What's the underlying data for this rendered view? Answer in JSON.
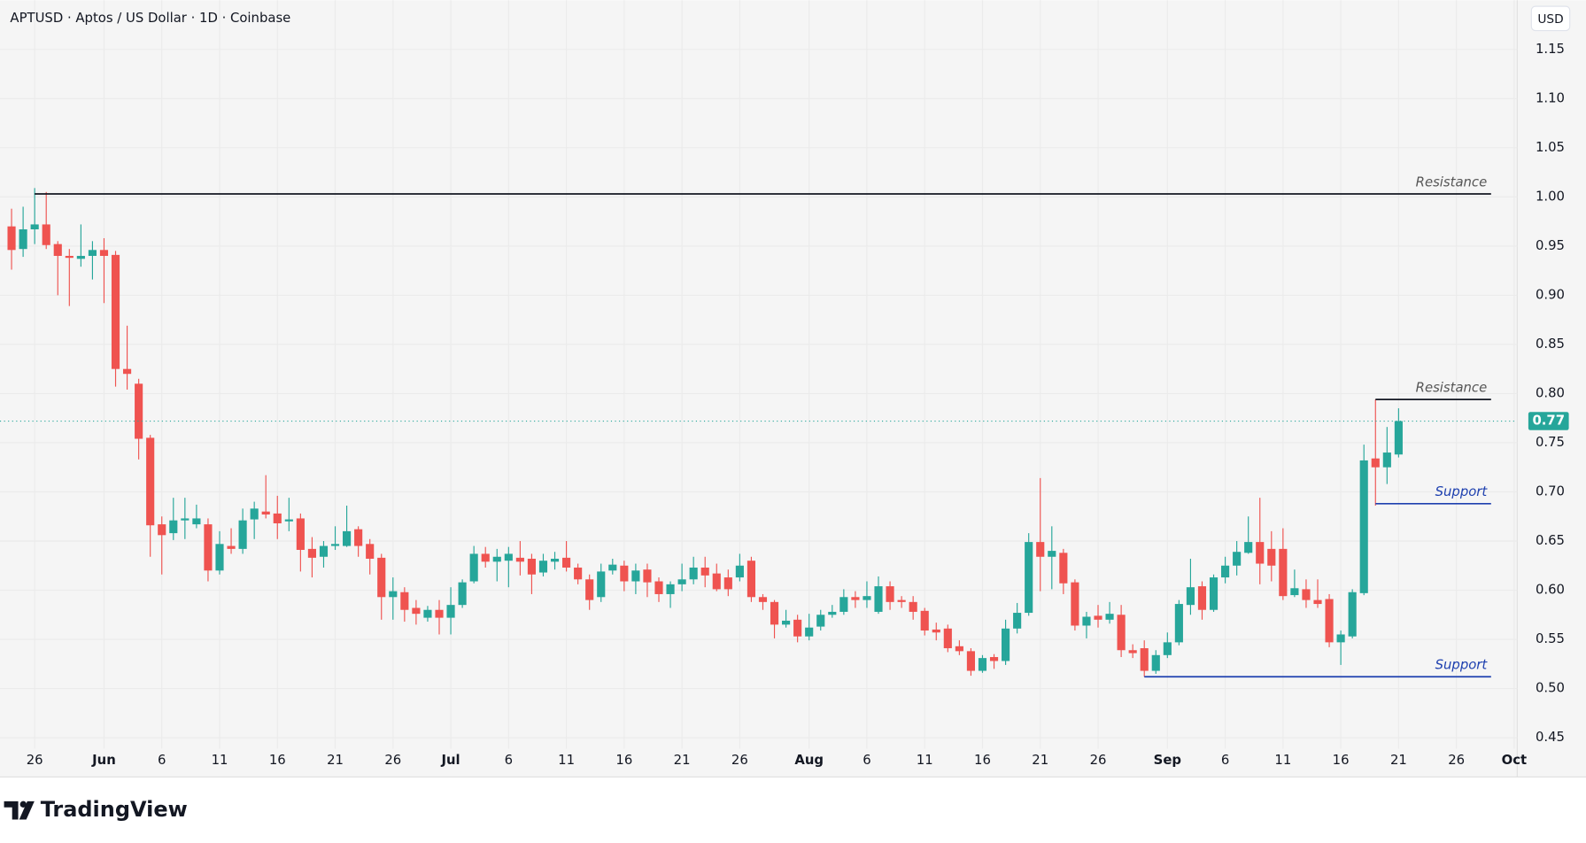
{
  "chart_data": {
    "type": "candlestick",
    "title": "APTUSD · Aptos / US Dollar · 1D · Coinbase",
    "x": [
      "05-24",
      "05-25",
      "05-26",
      "05-27",
      "05-28",
      "05-29",
      "05-30",
      "05-31",
      "06-01",
      "06-02",
      "06-03",
      "06-04",
      "06-05",
      "06-06",
      "06-07",
      "06-08",
      "06-09",
      "06-10",
      "06-11",
      "06-12",
      "06-13",
      "06-14",
      "06-15",
      "06-16",
      "06-17",
      "06-18",
      "06-19",
      "06-20",
      "06-21",
      "06-22",
      "06-23",
      "06-24",
      "06-25",
      "06-26",
      "06-27",
      "06-28",
      "06-29",
      "06-30",
      "07-01",
      "07-02",
      "07-03",
      "07-04",
      "07-05",
      "07-06",
      "07-07",
      "07-08",
      "07-09",
      "07-10",
      "07-11",
      "07-12",
      "07-13",
      "07-14",
      "07-15",
      "07-16",
      "07-17",
      "07-18",
      "07-19",
      "07-20",
      "07-21",
      "07-22",
      "07-23",
      "07-24",
      "07-25",
      "07-26",
      "07-27",
      "07-28",
      "07-29",
      "07-30",
      "07-31",
      "08-01",
      "08-02",
      "08-03",
      "08-04",
      "08-05",
      "08-06",
      "08-07",
      "08-08",
      "08-09",
      "08-10",
      "08-11",
      "08-12",
      "08-13",
      "08-14",
      "08-15",
      "08-16",
      "08-17",
      "08-18",
      "08-19",
      "08-20",
      "08-21",
      "08-22",
      "08-23",
      "08-24",
      "08-25",
      "08-26",
      "08-27",
      "08-28",
      "08-29",
      "08-30",
      "08-31",
      "09-01",
      "09-02",
      "09-03",
      "09-04",
      "09-05",
      "09-06",
      "09-07",
      "09-08",
      "09-09",
      "09-10",
      "09-11",
      "09-12",
      "09-13",
      "09-14",
      "09-15",
      "09-16",
      "09-17",
      "09-18",
      "09-19",
      "09-20",
      "09-21"
    ],
    "open": [
      0.97,
      0.947,
      0.967,
      0.972,
      0.952,
      0.94,
      0.937,
      0.94,
      0.946,
      0.941,
      0.825,
      0.81,
      0.755,
      0.667,
      0.658,
      0.671,
      0.667,
      0.667,
      0.62,
      0.645,
      0.642,
      0.672,
      0.68,
      0.678,
      0.67,
      0.673,
      0.642,
      0.634,
      0.645,
      0.645,
      0.662,
      0.647,
      0.633,
      0.593,
      0.598,
      0.582,
      0.572,
      0.58,
      0.572,
      0.585,
      0.609,
      0.637,
      0.629,
      0.63,
      0.633,
      0.632,
      0.618,
      0.629,
      0.633,
      0.623,
      0.611,
      0.593,
      0.62,
      0.625,
      0.609,
      0.621,
      0.609,
      0.596,
      0.606,
      0.611,
      0.623,
      0.617,
      0.613,
      0.613,
      0.63,
      0.593,
      0.588,
      0.565,
      0.57,
      0.553,
      0.563,
      0.575,
      0.578,
      0.593,
      0.59,
      0.578,
      0.604,
      0.59,
      0.588,
      0.579,
      0.56,
      0.561,
      0.543,
      0.538,
      0.518,
      0.532,
      0.528,
      0.561,
      0.577,
      0.649,
      0.634,
      0.638,
      0.608,
      0.564,
      0.574,
      0.57,
      0.575,
      0.539,
      0.541,
      0.518,
      0.534,
      0.547,
      0.585,
      0.604,
      0.58,
      0.613,
      0.625,
      0.638,
      0.649,
      0.642,
      0.642,
      0.595,
      0.601,
      0.59,
      0.591,
      0.547,
      0.553,
      0.597,
      0.734,
      0.725,
      0.738
    ],
    "high": [
      0.988,
      0.99,
      1.009,
      1.005,
      0.955,
      0.947,
      0.972,
      0.955,
      0.958,
      0.945,
      0.869,
      0.815,
      0.758,
      0.675,
      0.694,
      0.694,
      0.687,
      0.673,
      0.66,
      0.663,
      0.683,
      0.69,
      0.717,
      0.696,
      0.694,
      0.678,
      0.654,
      0.65,
      0.665,
      0.686,
      0.665,
      0.652,
      0.637,
      0.613,
      0.603,
      0.59,
      0.584,
      0.59,
      0.603,
      0.611,
      0.645,
      0.644,
      0.642,
      0.644,
      0.65,
      0.637,
      0.637,
      0.639,
      0.65,
      0.627,
      0.616,
      0.627,
      0.632,
      0.63,
      0.627,
      0.627,
      0.613,
      0.609,
      0.627,
      0.634,
      0.634,
      0.627,
      0.621,
      0.637,
      0.634,
      0.596,
      0.59,
      0.58,
      0.575,
      0.576,
      0.58,
      0.585,
      0.601,
      0.599,
      0.609,
      0.614,
      0.609,
      0.594,
      0.594,
      0.582,
      0.567,
      0.565,
      0.549,
      0.541,
      0.534,
      0.535,
      0.57,
      0.587,
      0.658,
      0.714,
      0.665,
      0.642,
      0.611,
      0.578,
      0.585,
      0.588,
      0.585,
      0.545,
      0.549,
      0.539,
      0.557,
      0.59,
      0.632,
      0.609,
      0.616,
      0.634,
      0.65,
      0.675,
      0.694,
      0.66,
      0.663,
      0.621,
      0.611,
      0.611,
      0.596,
      0.559,
      0.601,
      0.748,
      0.794,
      0.766,
      0.785
    ],
    "low": [
      0.926,
      0.939,
      0.952,
      0.947,
      0.9,
      0.889,
      0.929,
      0.916,
      0.892,
      0.807,
      0.804,
      0.733,
      0.634,
      0.616,
      0.651,
      0.652,
      0.663,
      0.609,
      0.616,
      0.637,
      0.637,
      0.652,
      0.673,
      0.652,
      0.66,
      0.619,
      0.613,
      0.623,
      0.641,
      0.644,
      0.634,
      0.616,
      0.57,
      0.57,
      0.568,
      0.565,
      0.568,
      0.555,
      0.555,
      0.582,
      0.607,
      0.623,
      0.609,
      0.603,
      0.615,
      0.596,
      0.614,
      0.621,
      0.619,
      0.606,
      0.58,
      0.588,
      0.616,
      0.599,
      0.596,
      0.593,
      0.588,
      0.582,
      0.599,
      0.606,
      0.603,
      0.599,
      0.594,
      0.609,
      0.588,
      0.58,
      0.551,
      0.562,
      0.547,
      0.549,
      0.559,
      0.572,
      0.575,
      0.582,
      0.582,
      0.576,
      0.58,
      0.582,
      0.57,
      0.554,
      0.549,
      0.537,
      0.534,
      0.513,
      0.516,
      0.52,
      0.524,
      0.556,
      0.574,
      0.599,
      0.601,
      0.596,
      0.559,
      0.551,
      0.562,
      0.566,
      0.532,
      0.531,
      0.512,
      0.515,
      0.531,
      0.544,
      0.575,
      0.57,
      0.578,
      0.607,
      0.615,
      0.637,
      0.606,
      0.609,
      0.59,
      0.593,
      0.582,
      0.582,
      0.542,
      0.524,
      0.551,
      0.595,
      0.686,
      0.708,
      0.735
    ],
    "close": [
      0.946,
      0.967,
      0.972,
      0.951,
      0.94,
      0.938,
      0.94,
      0.946,
      0.94,
      0.825,
      0.82,
      0.754,
      0.666,
      0.656,
      0.671,
      0.673,
      0.673,
      0.62,
      0.647,
      0.642,
      0.671,
      0.683,
      0.677,
      0.668,
      0.672,
      0.641,
      0.633,
      0.645,
      0.647,
      0.66,
      0.645,
      0.632,
      0.593,
      0.599,
      0.58,
      0.576,
      0.58,
      0.572,
      0.585,
      0.608,
      0.637,
      0.629,
      0.634,
      0.637,
      0.629,
      0.616,
      0.63,
      0.632,
      0.623,
      0.611,
      0.59,
      0.619,
      0.626,
      0.609,
      0.62,
      0.608,
      0.596,
      0.606,
      0.611,
      0.623,
      0.615,
      0.601,
      0.601,
      0.625,
      0.593,
      0.588,
      0.565,
      0.569,
      0.553,
      0.562,
      0.575,
      0.578,
      0.593,
      0.59,
      0.594,
      0.604,
      0.588,
      0.588,
      0.578,
      0.559,
      0.557,
      0.541,
      0.538,
      0.518,
      0.531,
      0.528,
      0.561,
      0.577,
      0.649,
      0.634,
      0.64,
      0.607,
      0.564,
      0.573,
      0.57,
      0.576,
      0.539,
      0.536,
      0.518,
      0.534,
      0.547,
      0.586,
      0.603,
      0.58,
      0.613,
      0.625,
      0.639,
      0.649,
      0.627,
      0.625,
      0.594,
      0.602,
      0.59,
      0.586,
      0.547,
      0.555,
      0.598,
      0.732,
      0.725,
      0.74,
      0.772
    ],
    "up_color": "#26a69a",
    "down_color": "#ef5350",
    "xlim": [
      "05-23",
      "10-01"
    ],
    "xticks": [
      {
        "value": "05-26",
        "label": "26"
      },
      {
        "value": "06-01",
        "label": "Jun"
      },
      {
        "value": "06-06",
        "label": "6"
      },
      {
        "value": "06-11",
        "label": "11"
      },
      {
        "value": "06-16",
        "label": "16"
      },
      {
        "value": "06-21",
        "label": "21"
      },
      {
        "value": "06-26",
        "label": "26"
      },
      {
        "value": "07-01",
        "label": "Jul"
      },
      {
        "value": "07-06",
        "label": "6"
      },
      {
        "value": "07-11",
        "label": "11"
      },
      {
        "value": "07-16",
        "label": "16"
      },
      {
        "value": "07-21",
        "label": "21"
      },
      {
        "value": "07-26",
        "label": "26"
      },
      {
        "value": "08-01",
        "label": "Aug"
      },
      {
        "value": "08-06",
        "label": "6"
      },
      {
        "value": "08-11",
        "label": "11"
      },
      {
        "value": "08-16",
        "label": "16"
      },
      {
        "value": "08-21",
        "label": "21"
      },
      {
        "value": "08-26",
        "label": "26"
      },
      {
        "value": "09-01",
        "label": "Sep"
      },
      {
        "value": "09-06",
        "label": "6"
      },
      {
        "value": "09-11",
        "label": "11"
      },
      {
        "value": "09-16",
        "label": "16"
      },
      {
        "value": "09-21",
        "label": "21"
      },
      {
        "value": "09-26",
        "label": "26"
      },
      {
        "value": "10-01",
        "label": "Oct"
      }
    ],
    "ylim": [
      0.41,
      1.2
    ],
    "yticks": [
      0.45,
      {
        "value": 0.5,
        "label": "0.50"
      },
      0.55,
      {
        "value": 0.6,
        "label": "0.60"
      },
      0.65,
      {
        "value": 0.7,
        "label": "0.70"
      },
      0.75,
      {
        "value": 0.8,
        "label": "0.80"
      },
      0.85,
      {
        "value": 0.9,
        "label": "0.90"
      },
      0.95,
      {
        "value": 1,
        "label": "1.00"
      },
      1.05,
      {
        "value": 1.1,
        "label": "1.10"
      },
      1.15
    ],
    "grid": true,
    "levels": [
      {
        "label": "Resistance",
        "value": 1.003,
        "start": "05-26",
        "end": "09-29",
        "color": "#131722"
      },
      {
        "label": "Resistance",
        "value": 0.794,
        "start": "09-19",
        "end": "09-29",
        "color": "#131722"
      },
      {
        "label": "Support",
        "value": 0.688,
        "start": "09-19",
        "end": "09-29",
        "color": "#1e40af"
      },
      {
        "label": "Support",
        "value": 0.512,
        "start": "08-30",
        "end": "09-29",
        "color": "#1e40af"
      }
    ],
    "last_price": {
      "value": 0.772,
      "label": "0.77"
    }
  },
  "currency": "USD",
  "brand": "TradingView"
}
